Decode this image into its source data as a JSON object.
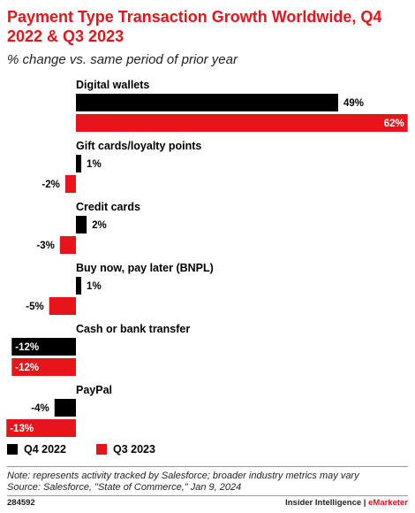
{
  "header": {
    "title": "Payment Type Transaction Growth Worldwide, Q4 2022 & Q3 2023",
    "subtitle": "% change vs. same period of prior year"
  },
  "chart_data": {
    "type": "bar",
    "orientation": "horizontal",
    "categories": [
      "Digital wallets",
      "Gift cards/loyalty points",
      "Credit cards",
      "Buy now, pay later (BNPL)",
      "Cash or bank transfer",
      "PayPal"
    ],
    "series": [
      {
        "name": "Q4 2022",
        "color": "#000000",
        "values": [
          49,
          1,
          2,
          1,
          -12,
          -4
        ],
        "labels": [
          "49%",
          "1%",
          "2%",
          "1%",
          "-12%",
          "-4%"
        ]
      },
      {
        "name": "Q3 2023",
        "color": "#e8141c",
        "values": [
          62,
          -2,
          -3,
          -5,
          -12,
          -13
        ],
        "labels": [
          "62%",
          "-2%",
          "-3%",
          "-5%",
          "-12%",
          "-13%"
        ]
      }
    ],
    "xlim": [
      -13,
      62
    ],
    "unit": "%",
    "legend_position": "bottom-left",
    "grid": false
  },
  "legend": [
    {
      "label": "Q4 2022",
      "color": "#000000"
    },
    {
      "label": "Q3 2023",
      "color": "#e8141c"
    }
  ],
  "notes": {
    "note": "Note: represents activity tracked by Salesforce; broader industry metrics may vary",
    "source": "Source: Salesforce, \"State of Commerce,\" Jan 9, 2024"
  },
  "footer": {
    "id": "284592",
    "brand": "Insider Intelligence",
    "separator": " | ",
    "brand2": "eMarketer"
  }
}
